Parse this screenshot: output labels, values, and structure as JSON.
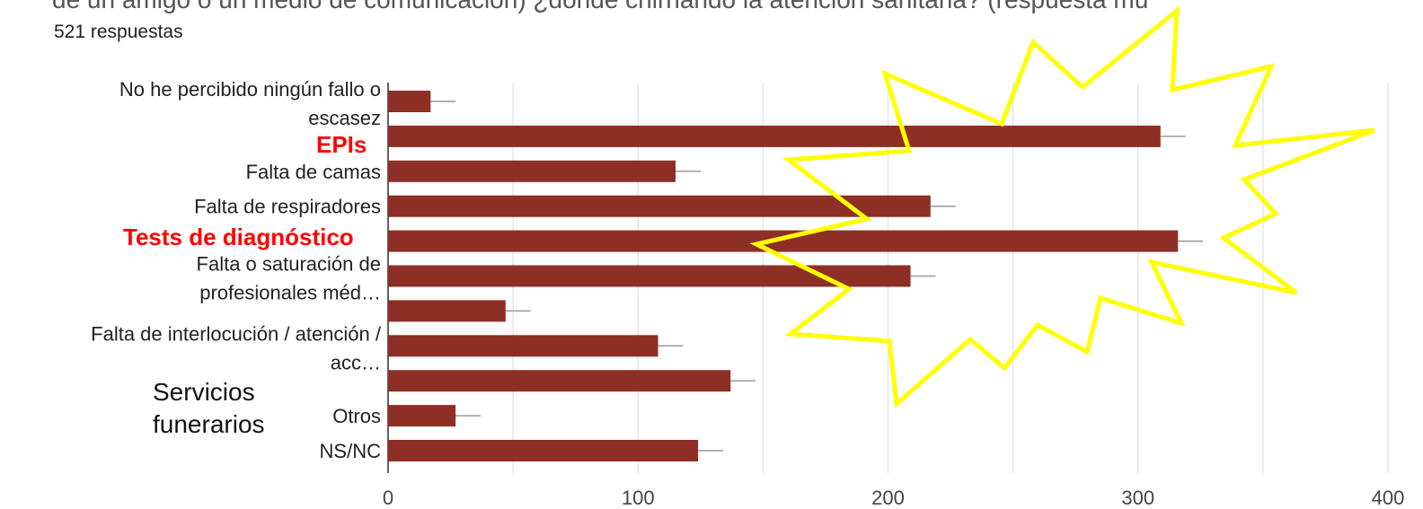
{
  "header": {
    "question_fragment": "de un amigo o un medio de comunicación) ¿dónde chirriando la atención sanitaria? (respuesta mú",
    "responses": "521 respuestas"
  },
  "chart_data": {
    "type": "bar",
    "orientation": "horizontal",
    "category_labels": [
      [
        "No he percibido ningún fallo o",
        "escasez"
      ],
      [],
      [
        "Falta de camas"
      ],
      [
        "Falta de respiradores"
      ],
      [],
      [
        "Falta o saturación de",
        "profesionales méd…"
      ],
      [],
      [
        "Falta de interlocución / atención /",
        "acc…"
      ],
      [],
      [
        "Otros"
      ],
      [
        "NS/NC"
      ]
    ],
    "values": [
      17,
      309,
      115,
      217,
      316,
      209,
      47,
      108,
      137,
      27,
      124
    ],
    "error": 10,
    "xlim": [
      0,
      400
    ],
    "xticks": [
      0,
      100,
      200,
      300,
      400
    ],
    "grid": true,
    "bar_color": "#8e2f25",
    "error_color": "#999999"
  },
  "annotations": {
    "epis": "EPIs",
    "tests": "Tests de diagnóstico",
    "servicios": [
      "Servicios",
      "funerarios"
    ],
    "star_color": "#ffff00",
    "red_color": "#ff0000"
  }
}
